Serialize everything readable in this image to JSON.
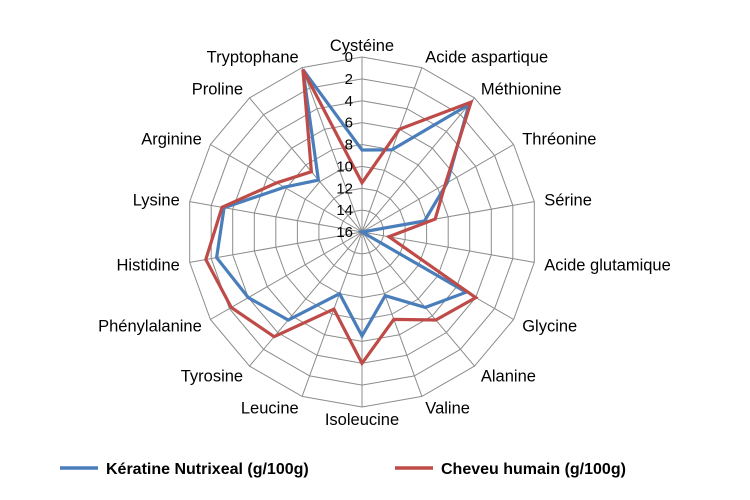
{
  "chart_data": {
    "type": "radar",
    "categories": [
      "Cystéine",
      "Acide aspartique",
      "Méthionine",
      "Thréonine",
      "Sérine",
      "Acide glutamique",
      "Glycine",
      "Alanine",
      "Valine",
      "Isoleucine",
      "Leucine",
      "Tyrosine",
      "Phénylalanine",
      "Histidine",
      "Lysine",
      "Arginine",
      "Proline",
      "Tryptophane"
    ],
    "axis_ticks": [
      "0",
      "2",
      "4",
      "6",
      "8",
      "10",
      "12",
      "14",
      "16"
    ],
    "rlim": [
      0,
      16
    ],
    "reversed_radial_axis": true,
    "grid": true,
    "legend_position": "bottom",
    "series": [
      {
        "name": "Kératine Nutrixeal (g/100g)",
        "color": "#4a7ebb",
        "values": [
          8.5,
          8.0,
          0.8,
          7.0,
          10.2,
          16.0,
          5.0,
          7.0,
          9.8,
          6.5,
          10.0,
          5.5,
          4.0,
          2.5,
          3.2,
          7.8,
          9.8,
          0.2
        ]
      },
      {
        "name": "Cheveu humain (g/100g)",
        "color": "#be4b48",
        "values": [
          11.5,
          6.0,
          0.5,
          7.2,
          9.2,
          13.5,
          4.0,
          5.5,
          7.5,
          4.0,
          8.5,
          3.5,
          2.2,
          1.5,
          3.0,
          7.0,
          8.8,
          0.2
        ]
      }
    ]
  }
}
